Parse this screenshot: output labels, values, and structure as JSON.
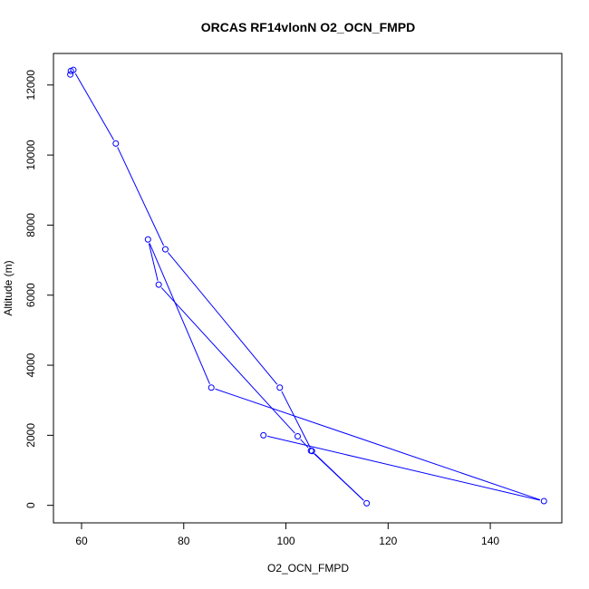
{
  "chart_data": {
    "type": "line",
    "title": "ORCAS RF14vlonN O2_OCN_FMPD",
    "xlabel": "O2_OCN_FMPD",
    "ylabel": "Altitude (m)",
    "xlim": [
      54.5,
      154.0
    ],
    "ylim": [
      -500,
      12900
    ],
    "xticks": [
      60,
      80,
      100,
      120,
      140
    ],
    "yticks": [
      0,
      2000,
      4000,
      6000,
      8000,
      10000,
      12000
    ],
    "grid": false,
    "marker": "open-circle",
    "color": "#0000ff",
    "series": [
      {
        "points": [
          [
            57.8,
            12300
          ],
          [
            57.9,
            12400
          ],
          [
            58.4,
            12430
          ],
          [
            66.7,
            10330
          ],
          [
            76.4,
            7310
          ],
          [
            98.8,
            3360
          ],
          [
            105.1,
            1550
          ],
          [
            115.8,
            60
          ],
          [
            104.9,
            1560
          ],
          [
            102.3,
            1970
          ],
          [
            75.1,
            6300
          ],
          [
            73.0,
            7590
          ],
          [
            85.4,
            3360
          ],
          [
            150.5,
            120
          ],
          [
            95.6,
            2000
          ]
        ]
      }
    ]
  }
}
